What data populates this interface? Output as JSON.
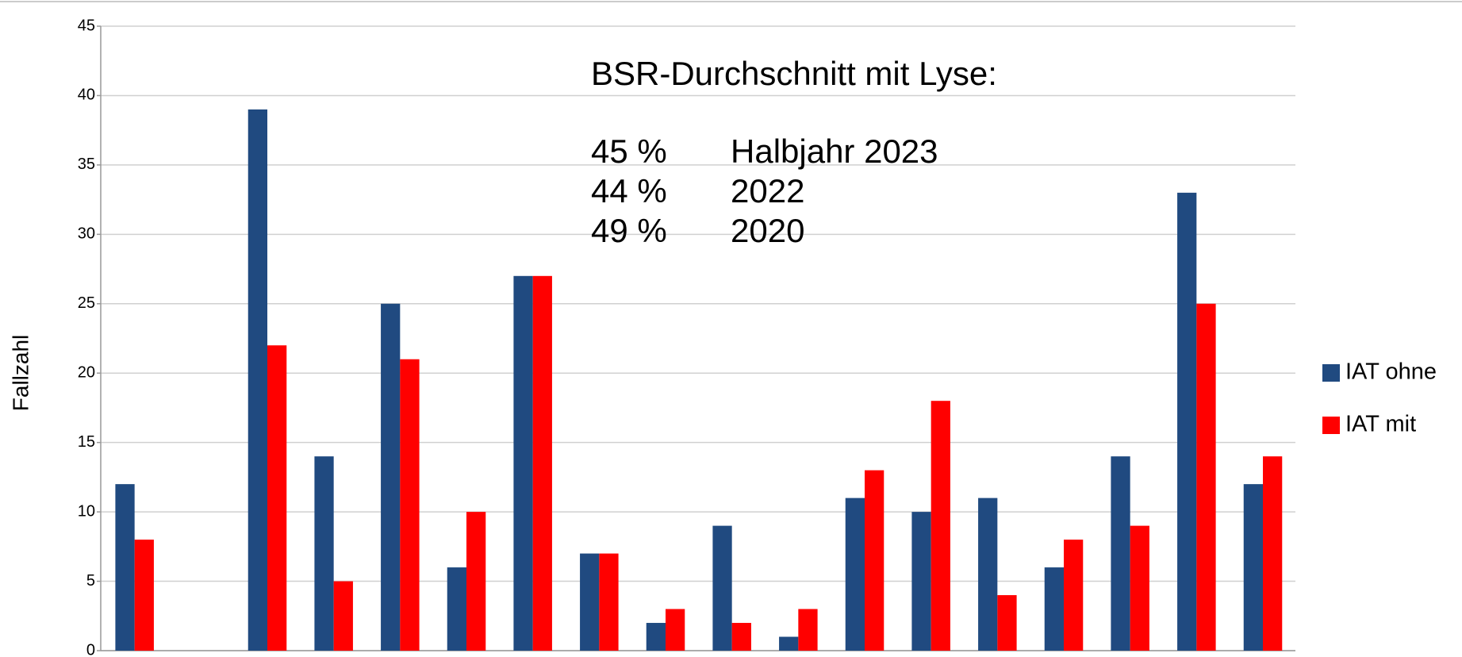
{
  "chart_data": {
    "type": "bar",
    "y_label": "Fallzahl",
    "categories": [
      null,
      null,
      null,
      null,
      null,
      null,
      null,
      null,
      null,
      null,
      null,
      null,
      null,
      null,
      null,
      null,
      null,
      null
    ],
    "series": [
      {
        "name": "IAT ohne",
        "color": "#204a80",
        "values": [
          12,
          null,
          39,
          14,
          25,
          6,
          27,
          7,
          2,
          9,
          1,
          11,
          10,
          11,
          6,
          14,
          33,
          12
        ]
      },
      {
        "name": "IAT mit",
        "color": "#ff0000",
        "values": [
          8,
          null,
          22,
          5,
          21,
          10,
          27,
          7,
          3,
          2,
          3,
          13,
          18,
          4,
          8,
          9,
          25,
          14
        ]
      }
    ],
    "ylim": [
      0,
      45
    ],
    "yticks": [
      0,
      5,
      10,
      15,
      20,
      25,
      30,
      35,
      40,
      45
    ],
    "grid": true,
    "legend": "right",
    "annotation": {
      "title": "BSR-Durchschnitt mit Lyse:",
      "rows": [
        [
          "45 %",
          "Halbjahr 2023"
        ],
        [
          "44 %",
          "2022"
        ],
        [
          "49 %",
          "2020"
        ]
      ]
    }
  }
}
